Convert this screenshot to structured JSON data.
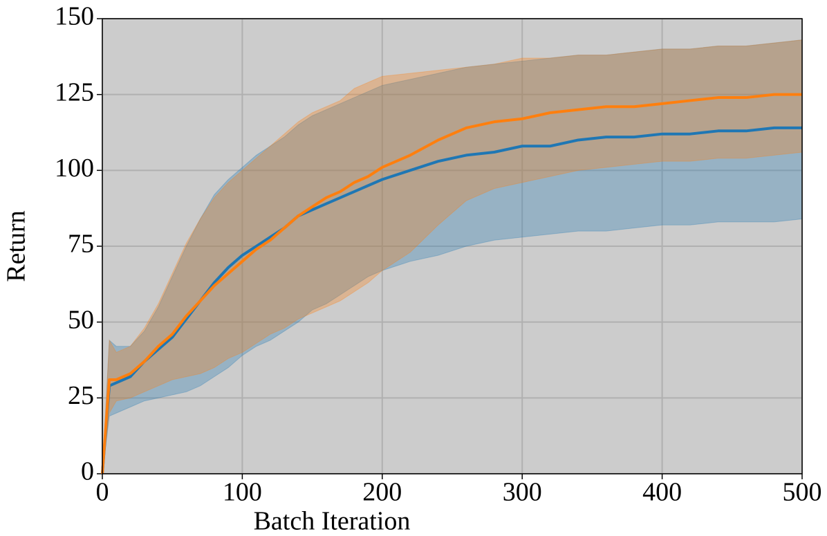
{
  "chart_data": {
    "type": "line",
    "xlabel": "Batch Iteration",
    "ylabel": "Return",
    "x": [
      0,
      5,
      10,
      20,
      30,
      40,
      50,
      60,
      70,
      80,
      90,
      100,
      110,
      120,
      130,
      140,
      150,
      160,
      170,
      180,
      190,
      200,
      220,
      240,
      260,
      280,
      300,
      320,
      340,
      360,
      380,
      400,
      420,
      440,
      460,
      480,
      500
    ],
    "series": [
      {
        "color": "#1f77b4",
        "band_color": "#1f77b4",
        "values": [
          0,
          29,
          30,
          32,
          37,
          41,
          45,
          51,
          57,
          63,
          68,
          72,
          75,
          78,
          81,
          85,
          87,
          89,
          91,
          93,
          95,
          97,
          100,
          103,
          105,
          106,
          108,
          108,
          110,
          111,
          111,
          112,
          112,
          113,
          113,
          114,
          114
        ],
        "upper": [
          0,
          44,
          42,
          42,
          47,
          55,
          65,
          75,
          84,
          92,
          97,
          101,
          105,
          108,
          111,
          115,
          118,
          120,
          122,
          124,
          126,
          128,
          130,
          132,
          134,
          135,
          136,
          137,
          138,
          138,
          139,
          140,
          140,
          141,
          141,
          142,
          143
        ],
        "lower": [
          0,
          19,
          20,
          22,
          24,
          25,
          26,
          27,
          29,
          32,
          35,
          39,
          42,
          44,
          47,
          50,
          54,
          56,
          59,
          62,
          65,
          67,
          70,
          72,
          75,
          77,
          78,
          79,
          80,
          80,
          81,
          82,
          82,
          83,
          83,
          83,
          84
        ]
      },
      {
        "color": "#ff7f0e",
        "band_color": "#ff7f0e",
        "values": [
          0,
          31,
          31,
          33,
          37,
          42,
          46,
          52,
          57,
          62,
          66,
          70,
          74,
          77,
          81,
          85,
          88,
          91,
          93,
          96,
          98,
          101,
          105,
          110,
          114,
          116,
          117,
          119,
          120,
          121,
          121,
          122,
          123,
          124,
          124,
          125,
          125
        ],
        "upper": [
          0,
          44,
          40,
          42,
          48,
          56,
          66,
          76,
          84,
          91,
          96,
          100,
          104,
          108,
          112,
          116,
          119,
          121,
          123,
          127,
          129,
          131,
          132,
          133,
          134,
          135,
          137,
          137,
          138,
          138,
          139,
          140,
          140,
          141,
          141,
          142,
          143
        ],
        "lower": [
          0,
          20,
          24,
          25,
          27,
          29,
          31,
          32,
          33,
          35,
          38,
          40,
          43,
          46,
          48,
          51,
          53,
          55,
          57,
          60,
          63,
          67,
          73,
          82,
          90,
          94,
          96,
          98,
          100,
          101,
          102,
          103,
          103,
          104,
          104,
          105,
          106
        ]
      }
    ],
    "xlim": [
      0,
      500
    ],
    "xticks": [
      0,
      100,
      200,
      300,
      400,
      500
    ],
    "ylim": [
      0,
      150
    ],
    "yticks": [
      0,
      25,
      50,
      75,
      100,
      125,
      150
    ],
    "grid": true,
    "background": "#cccccc"
  }
}
